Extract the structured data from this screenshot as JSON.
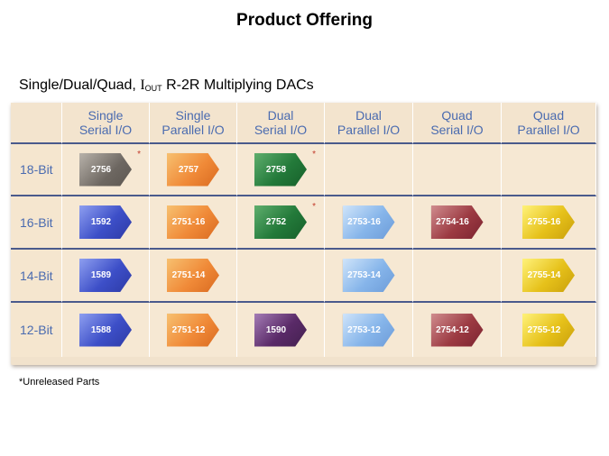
{
  "title": "Product Offering",
  "subtitle": {
    "prefix": "Single/Dual/Quad, ",
    "i_main": "I",
    "i_sub": "OUT",
    "suffix": " R-2R Multiplying DACs"
  },
  "columns": [
    {
      "line1": "Single",
      "line2": "Serial I/O"
    },
    {
      "line1": "Single",
      "line2": "Parallel I/O"
    },
    {
      "line1": "Dual",
      "line2": "Serial I/O"
    },
    {
      "line1": "Dual",
      "line2": "Parallel I/O"
    },
    {
      "line1": "Quad",
      "line2": "Serial I/O"
    },
    {
      "line1": "Quad",
      "line2": "Parallel I/O"
    }
  ],
  "rows": [
    {
      "label": "18-Bit",
      "cells": [
        {
          "part": "2756",
          "color": "gray",
          "star": "*"
        },
        {
          "part": "2757",
          "color": "orange",
          "star": ""
        },
        {
          "part": "2758",
          "color": "green",
          "star": "*"
        },
        null,
        null,
        null
      ]
    },
    {
      "label": "16-Bit",
      "cells": [
        {
          "part": "1592",
          "color": "blue",
          "star": ""
        },
        {
          "part": "2751-16",
          "color": "orange",
          "star": ""
        },
        {
          "part": "2752",
          "color": "green",
          "star": "*"
        },
        {
          "part": "2753-16",
          "color": "lblue",
          "star": ""
        },
        {
          "part": "2754-16",
          "color": "red",
          "star": ""
        },
        {
          "part": "2755-16",
          "color": "yellow",
          "star": ""
        }
      ]
    },
    {
      "label": "14-Bit",
      "cells": [
        {
          "part": "1589",
          "color": "blue",
          "star": ""
        },
        {
          "part": "2751-14",
          "color": "orange",
          "star": ""
        },
        null,
        {
          "part": "2753-14",
          "color": "lblue",
          "star": ""
        },
        null,
        {
          "part": "2755-14",
          "color": "yellow",
          "star": ""
        }
      ]
    },
    {
      "label": "12-Bit",
      "cells": [
        {
          "part": "1588",
          "color": "blue",
          "star": ""
        },
        {
          "part": "2751-12",
          "color": "orange",
          "star": ""
        },
        {
          "part": "1590",
          "color": "purple",
          "star": ""
        },
        {
          "part": "2753-12",
          "color": "lblue",
          "star": ""
        },
        {
          "part": "2754-12",
          "color": "red",
          "star": ""
        },
        {
          "part": "2755-12",
          "color": "yellow",
          "star": ""
        }
      ]
    }
  ],
  "footnote": "*Unreleased Parts"
}
